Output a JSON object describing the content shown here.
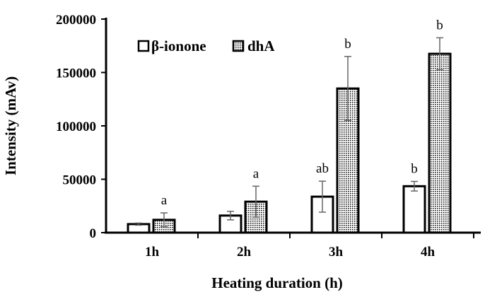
{
  "chart_data": {
    "type": "bar",
    "title": "",
    "xlabel": "Heating duration (h)",
    "ylabel": "Intensity (mAv)",
    "ylim": [
      0,
      200000
    ],
    "yticks": [
      "0",
      "50000",
      "100000",
      "150000",
      "200000"
    ],
    "categories": [
      "1h",
      "2h",
      "3h",
      "4h"
    ],
    "legend_position": "top-left",
    "series": [
      {
        "name": "β-ionone",
        "fill": "white",
        "values": [
          8000,
          16000,
          33700,
          43500
        ],
        "errors": [
          1000,
          4000,
          14500,
          4500
        ],
        "labels": [
          "",
          "",
          "ab",
          "b"
        ]
      },
      {
        "name": "dhA",
        "fill": "dotted",
        "values": [
          12000,
          29000,
          135000,
          167500
        ],
        "errors": [
          6500,
          14500,
          30000,
          15000
        ],
        "labels": [
          "a",
          "a",
          "b",
          "b"
        ]
      }
    ]
  }
}
